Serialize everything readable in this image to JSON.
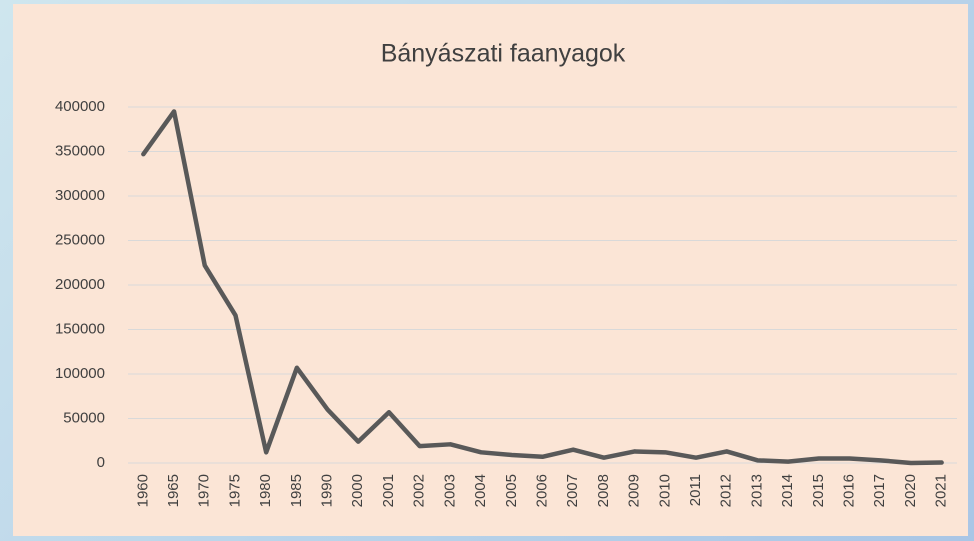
{
  "chart_data": {
    "type": "line",
    "title": "Bányászati faanyagok",
    "categories": [
      "1960",
      "1965",
      "1970",
      "1975",
      "1980",
      "1985",
      "1990",
      "2000",
      "2001",
      "2002",
      "2003",
      "2004",
      "2005",
      "2006",
      "2007",
      "2008",
      "2009",
      "2010",
      "2011",
      "2012",
      "2013",
      "2014",
      "2015",
      "2016",
      "2017",
      "2020",
      "2021"
    ],
    "series": [
      {
        "name": "Bányászati faanyagok",
        "color": "#595959",
        "values": [
          347000,
          395000,
          222000,
          166000,
          12000,
          107000,
          60000,
          24000,
          57000,
          19000,
          21000,
          12000,
          9000,
          7000,
          15000,
          6000,
          13000,
          12000,
          6000,
          13000,
          3000,
          1500,
          5000,
          5000,
          3000,
          0,
          500
        ]
      }
    ],
    "ylim": [
      0,
      400000
    ],
    "yticks": [
      0,
      50000,
      100000,
      150000,
      200000,
      250000,
      300000,
      350000,
      400000
    ],
    "grid": true
  }
}
